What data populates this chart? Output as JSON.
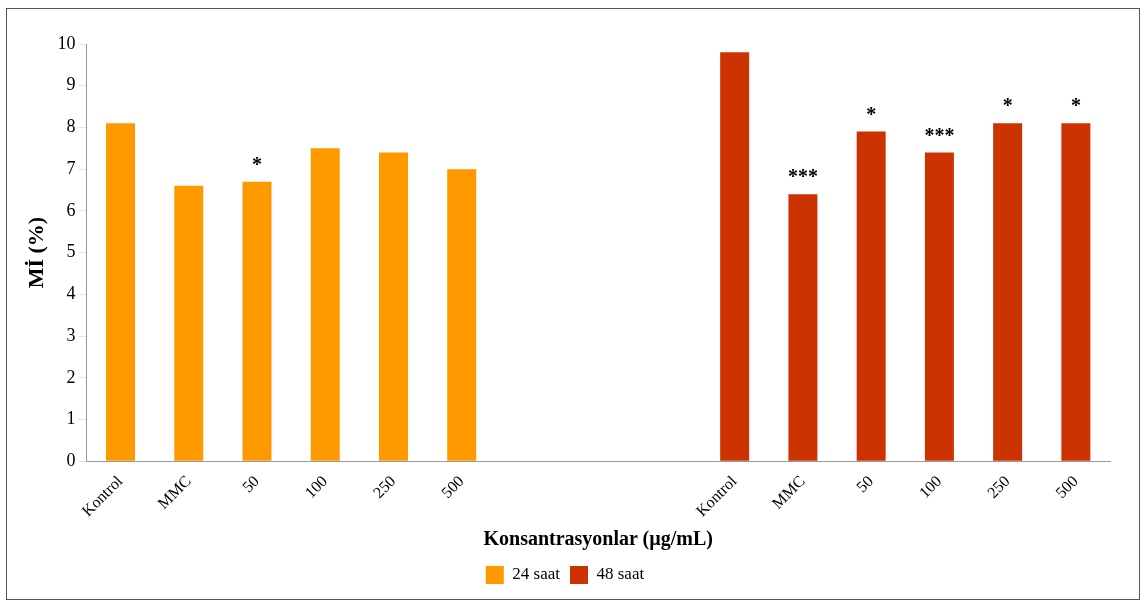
{
  "chart_data": {
    "type": "bar",
    "xlabel": "Konsantrasyonlar (µg/mL)",
    "ylabel": "Mİ (%)",
    "categories": [
      "Kontrol",
      "MMC",
      "50",
      "100",
      "250",
      "500",
      null,
      null,
      null,
      "Kontrol",
      "MMC",
      "50",
      "100",
      "250",
      "500"
    ],
    "series": [
      {
        "name": "24 saat",
        "color": "#ff9900",
        "values": [
          8.1,
          6.6,
          6.7,
          7.5,
          7.4,
          7.0,
          null,
          null,
          null,
          null,
          null,
          null,
          null,
          null,
          null
        ],
        "value_labels": [
          null,
          null,
          "*",
          null,
          null,
          null,
          null,
          null,
          null,
          null,
          null,
          null,
          null,
          null,
          null
        ]
      },
      {
        "name": "48 saat",
        "color": "#cc3300",
        "values": [
          null,
          null,
          null,
          null,
          null,
          null,
          null,
          null,
          null,
          9.8,
          6.4,
          7.9,
          7.4,
          8.1,
          8.1
        ],
        "value_labels": [
          null,
          null,
          null,
          null,
          null,
          null,
          null,
          null,
          null,
          null,
          "***",
          "*",
          "***",
          "*",
          "*"
        ]
      }
    ],
    "ylim": [
      0,
      10
    ],
    "yticks": [
      0,
      1,
      2,
      3,
      4,
      5,
      6,
      7,
      8,
      9,
      10
    ],
    "grid": false,
    "legend": "bottom"
  }
}
